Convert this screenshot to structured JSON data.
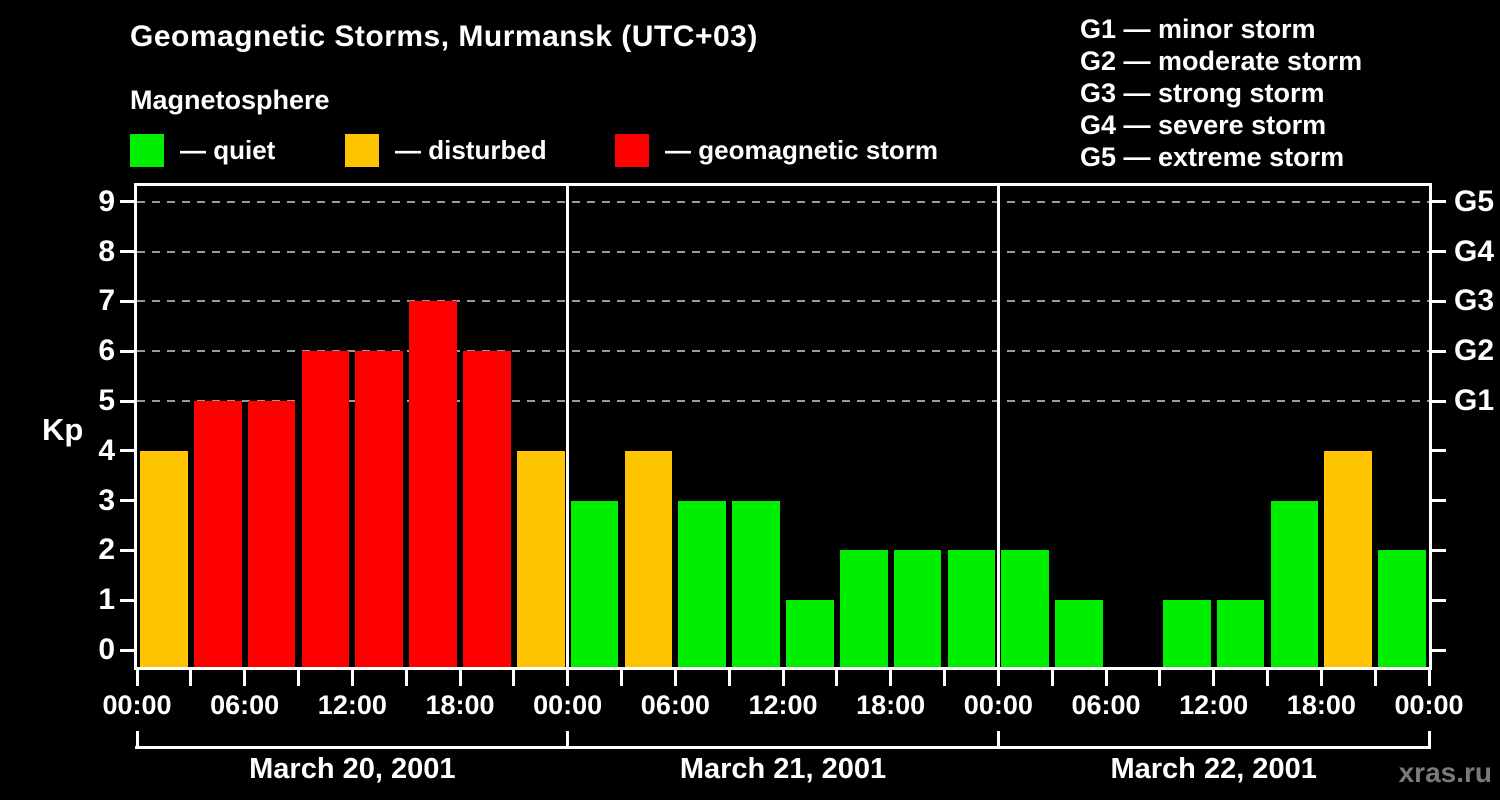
{
  "header": {
    "title": "Geomagnetic Storms, Murmansk (UTC+03)",
    "subtitle": "Magnetosphere"
  },
  "legend": {
    "items": [
      {
        "key": "quiet",
        "label": "— quiet"
      },
      {
        "key": "disturbed",
        "label": "— disturbed"
      },
      {
        "key": "storm",
        "label": "— geomagnetic storm"
      }
    ]
  },
  "g_legend": {
    "items": [
      "G1 — minor storm",
      "G2 — moderate storm",
      "G3 — strong storm",
      "G4 — severe storm",
      "G5 — extreme storm"
    ]
  },
  "colors": {
    "quiet": "#00ee00",
    "disturbed": "#ffc400",
    "storm": "#ff0000",
    "background": "#000000",
    "text": "#ffffff",
    "grid": "#999999",
    "axis": "#ffffff",
    "watermark": "#7a7a7a"
  },
  "axes": {
    "y_label": "Kp",
    "y_ticks": [
      "0",
      "1",
      "2",
      "3",
      "4",
      "5",
      "6",
      "7",
      "8",
      "9"
    ],
    "right_labels": [
      {
        "label": "G1",
        "kp": 5
      },
      {
        "label": "G2",
        "kp": 6
      },
      {
        "label": "G3",
        "kp": 7
      },
      {
        "label": "G4",
        "kp": 8
      },
      {
        "label": "G5",
        "kp": 9
      }
    ],
    "x_labels": [
      "00:00",
      "06:00",
      "12:00",
      "18:00",
      "00:00",
      "06:00",
      "12:00",
      "18:00",
      "00:00",
      "06:00",
      "12:00",
      "18:00",
      "00:00"
    ]
  },
  "chart_data": {
    "type": "bar",
    "title": "Geomagnetic Storms, Murmansk (UTC+03)",
    "ylabel": "Kp",
    "ylim": [
      0,
      9
    ],
    "grid_levels": [
      5,
      6,
      7,
      8,
      9
    ],
    "bar_interval_hours": 3,
    "bars_per_day": 8,
    "days": [
      {
        "date": "March 20, 2001",
        "values": [
          4,
          5,
          5,
          6,
          6,
          7,
          6,
          4
        ],
        "status": [
          "disturbed",
          "storm",
          "storm",
          "storm",
          "storm",
          "storm",
          "storm",
          "disturbed"
        ]
      },
      {
        "date": "March 21, 2001",
        "values": [
          3,
          4,
          3,
          3,
          1,
          2,
          2,
          2
        ],
        "status": [
          "quiet",
          "disturbed",
          "quiet",
          "quiet",
          "quiet",
          "quiet",
          "quiet",
          "quiet"
        ]
      },
      {
        "date": "March 22, 2001",
        "values": [
          2,
          1,
          0,
          1,
          1,
          3,
          4,
          2
        ],
        "status": [
          "quiet",
          "quiet",
          "quiet",
          "quiet",
          "quiet",
          "quiet",
          "disturbed",
          "quiet"
        ]
      }
    ]
  },
  "footer": {
    "watermark": "xras.ru"
  }
}
